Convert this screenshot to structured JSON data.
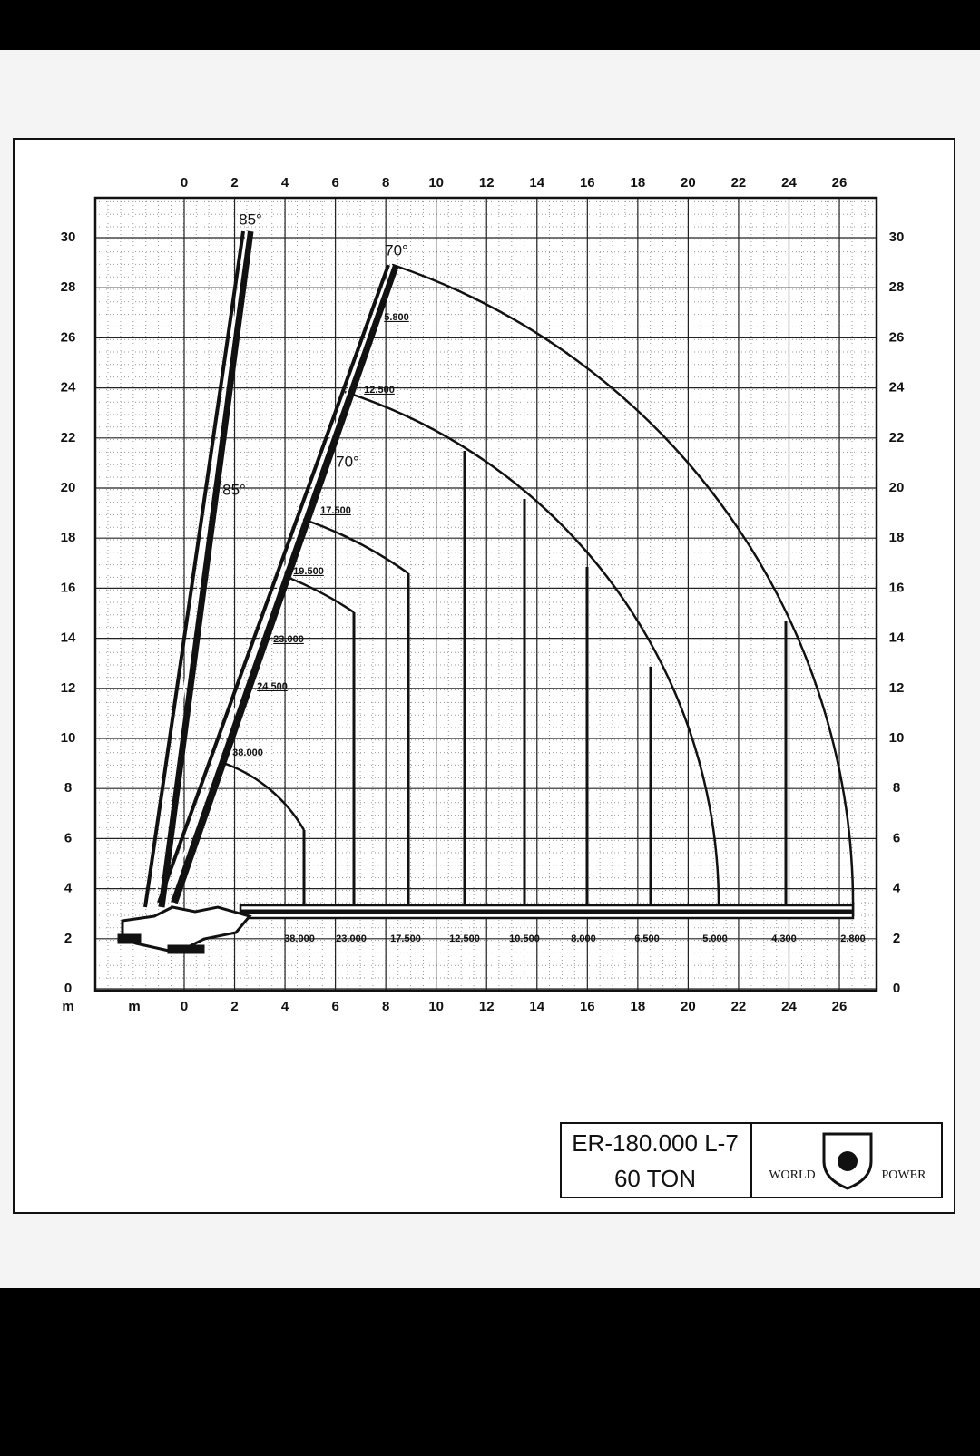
{
  "axes": {
    "x_ticks": [
      0,
      2,
      4,
      6,
      8,
      10,
      12,
      14,
      16,
      18,
      20,
      22,
      24,
      26
    ],
    "y_ticks": [
      0,
      2,
      4,
      6,
      8,
      10,
      12,
      14,
      16,
      18,
      20,
      22,
      24,
      26,
      28,
      30
    ],
    "unit": "m"
  },
  "boom_angles": [
    "85°",
    "85°",
    "70°",
    "70°"
  ],
  "boom_loads": [
    "5.800",
    "12.500",
    "17.500",
    "19.500",
    "23.000",
    "24.500",
    "38.000"
  ],
  "radius_loads": [
    "38.000",
    "23.000",
    "17.500",
    "12.500",
    "10.500",
    "8.000",
    "6.500",
    "5.000",
    "4.300",
    "2.800"
  ],
  "title_block": {
    "model": "ER-180.000 L-7",
    "capacity": "60 TON",
    "brand_left": "WORLD",
    "brand_right": "POWER"
  }
}
